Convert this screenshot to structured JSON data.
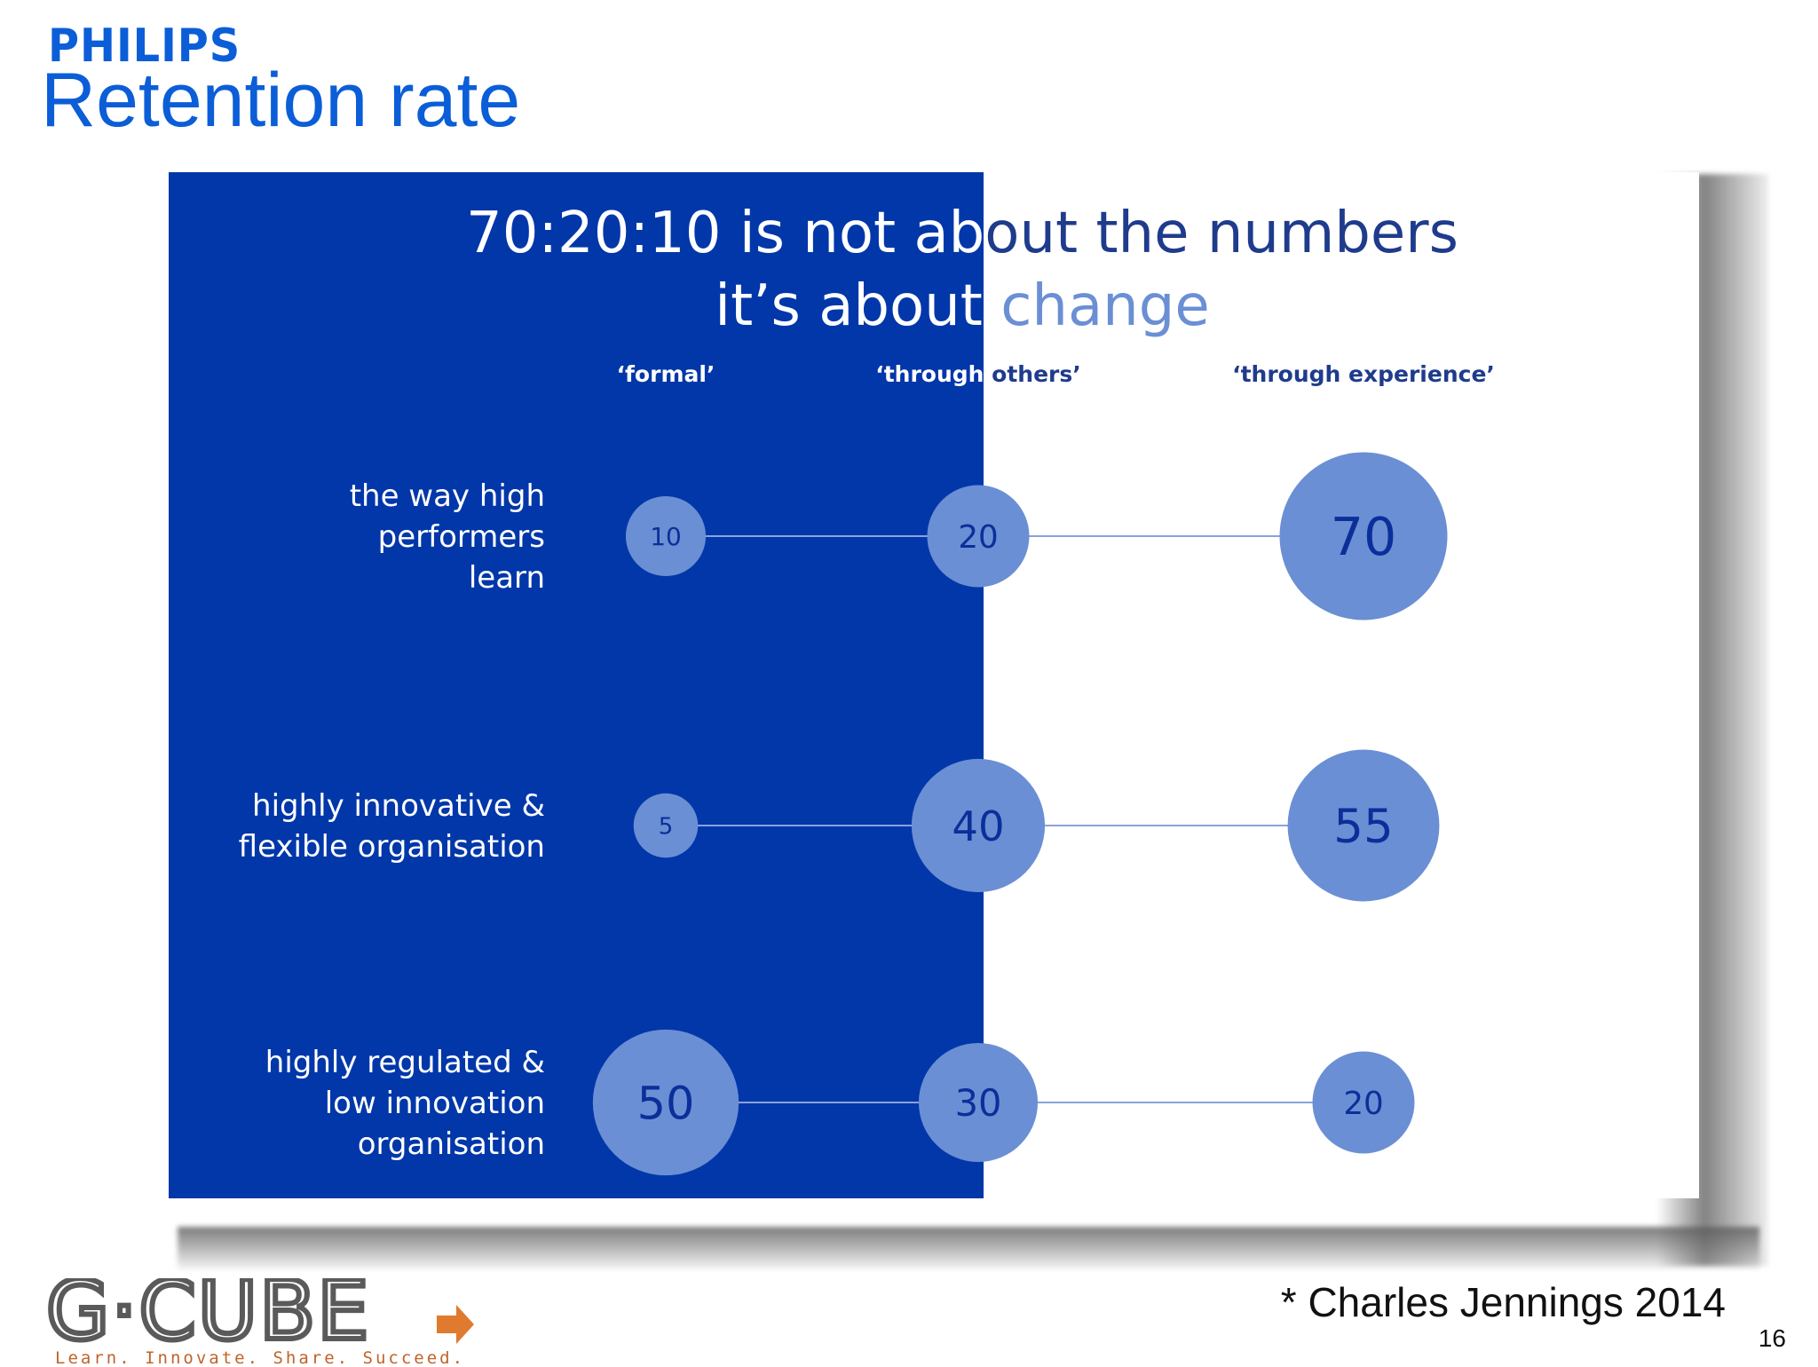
{
  "header": {
    "logo_text": "PHILIPS",
    "title": "Retention rate"
  },
  "colors": {
    "dark_blue": "#0137a9",
    "bubble": "#6b8fd4",
    "bubble_text_dark": "#0b2f9a",
    "line": "#8aa2dc",
    "title_white": "#ffffff",
    "title_dark": "#1f3b8c",
    "change_word": "#6b8fd4"
  },
  "chart_data": {
    "type": "bubble",
    "title_line1": "70:20:10 is not about the numbers",
    "title_line2_prefix": "it’s about ",
    "title_line2_emphasis": "change",
    "columns": [
      "‘formal’",
      "‘through others’",
      "‘through experience’"
    ],
    "rows": [
      {
        "label": [
          "the way high",
          "performers",
          "learn"
        ],
        "values": [
          10,
          20,
          70
        ]
      },
      {
        "label": [
          "highly innovative &",
          "flexible organisation"
        ],
        "values": [
          5,
          40,
          55
        ]
      },
      {
        "label": [
          "highly regulated &",
          "low innovation",
          "organisation"
        ],
        "values": [
          50,
          30,
          20
        ]
      }
    ]
  },
  "footer": {
    "credit": "* Charles Jennings 2014",
    "page_number": "16",
    "gcube_logo": "G·CUBE",
    "gcube_tagline": "Learn. Innovate. Share. Succeed."
  }
}
